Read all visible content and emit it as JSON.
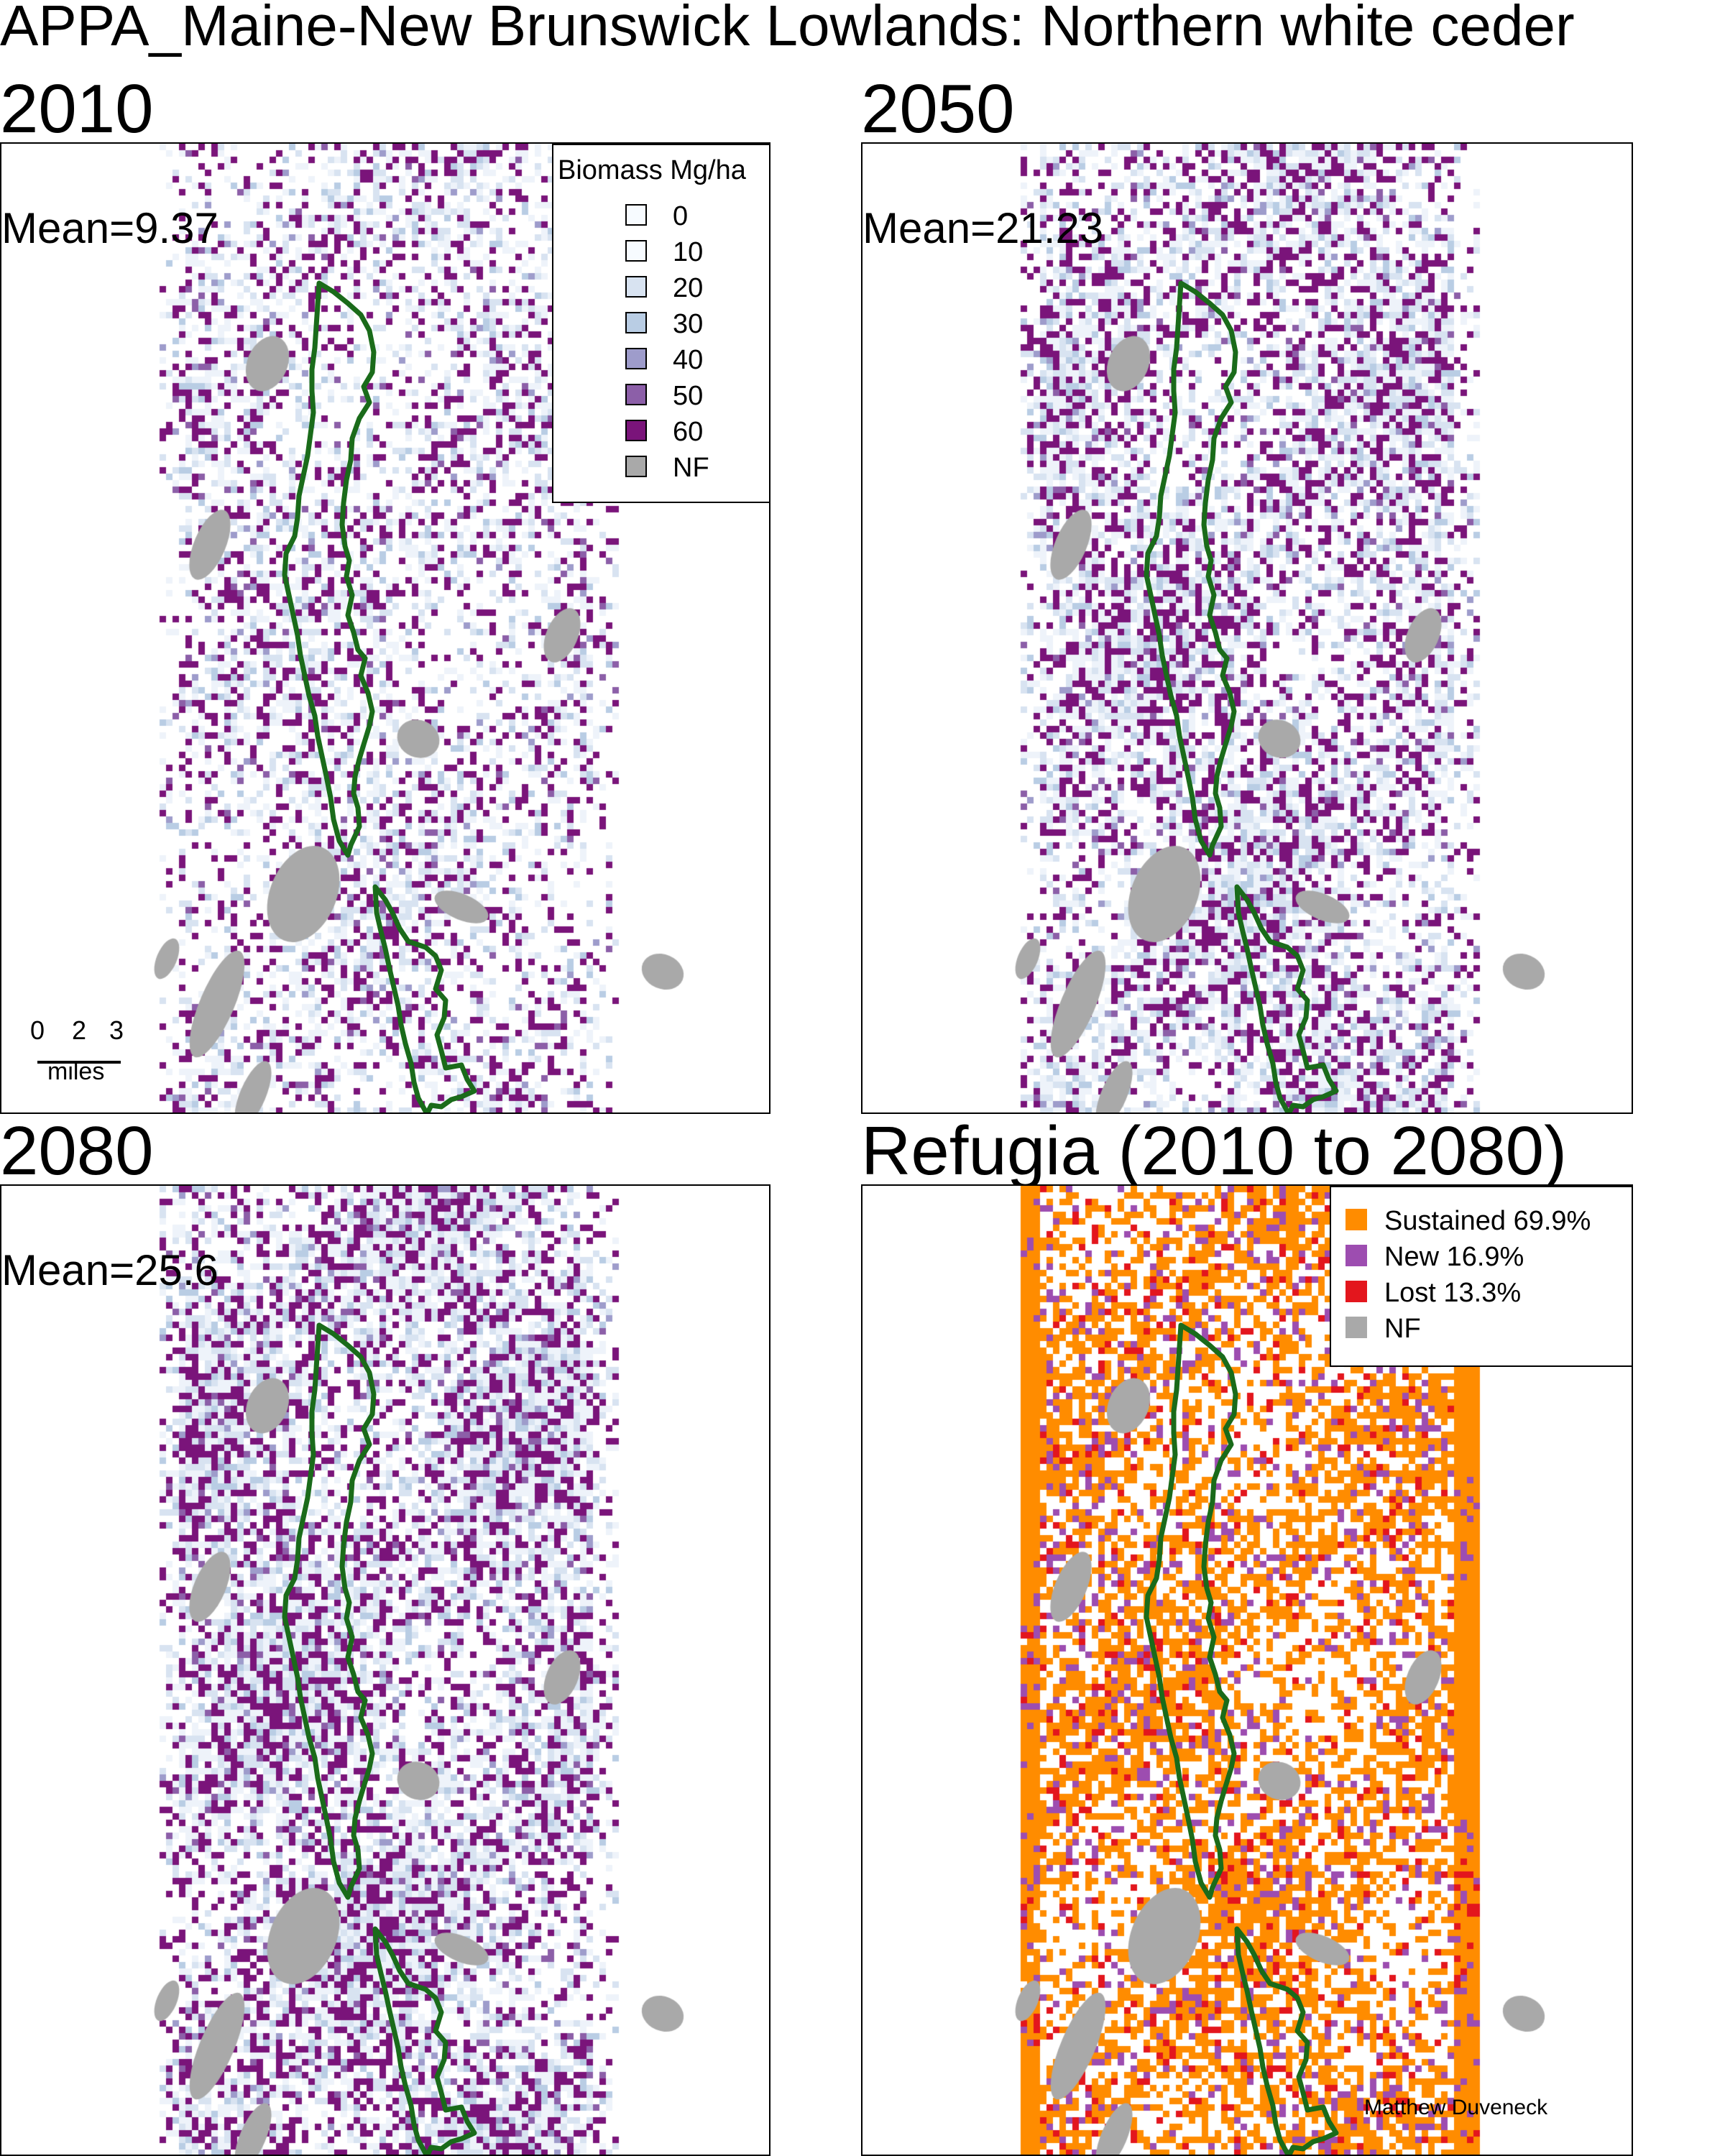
{
  "title": "APPA_Maine-New Brunswick Lowlands: Northern white ceder",
  "colors": {
    "biomass": [
      "#f7fbff",
      "#eef3fa",
      "#d8e3f1",
      "#b9cde4",
      "#9e9ccb",
      "#8c5fa8",
      "#7a147a"
    ],
    "nf": "#a9a9a9",
    "boundary": "#1a6b1a",
    "sustained": "#ff8c00",
    "new": "#9d4db0",
    "lost": "#e3161d"
  },
  "panels": [
    {
      "title": "2010",
      "mean_label": "Mean=9.37",
      "mean": 9.37
    },
    {
      "title": "2050",
      "mean_label": "Mean=21.23",
      "mean": 21.23
    },
    {
      "title": "2080",
      "mean_label": "Mean=25.6",
      "mean": 25.6
    },
    {
      "title": "Refugia (2010 to 2080)"
    }
  ],
  "biomass_legend": {
    "title": "Biomass Mg/ha",
    "items": [
      {
        "label": "0",
        "color": "#f7fbff"
      },
      {
        "label": "10",
        "color": "#f7fbff"
      },
      {
        "label": "20",
        "color": "#d8e3f1"
      },
      {
        "label": "30",
        "color": "#b9cde4"
      },
      {
        "label": "40",
        "color": "#9e9ccb"
      },
      {
        "label": "50",
        "color": "#8c5fa8"
      },
      {
        "label": "60",
        "color": "#7a147a"
      },
      {
        "label": "NF",
        "color": "#a9a9a9"
      }
    ]
  },
  "refugia_legend": {
    "items": [
      {
        "label": "Sustained 69.9%",
        "color": "#ff8c00",
        "value": 69.9
      },
      {
        "label": "New 16.9%",
        "color": "#9d4db0",
        "value": 16.9
      },
      {
        "label": "Lost 13.3%",
        "color": "#e3161d",
        "value": 13.3
      },
      {
        "label": "NF",
        "color": "#a9a9a9"
      }
    ]
  },
  "scale_bar": {
    "ticks": [
      "0",
      "2",
      "3"
    ],
    "unit": "miles"
  },
  "credit": "Matthew Duveneck"
}
